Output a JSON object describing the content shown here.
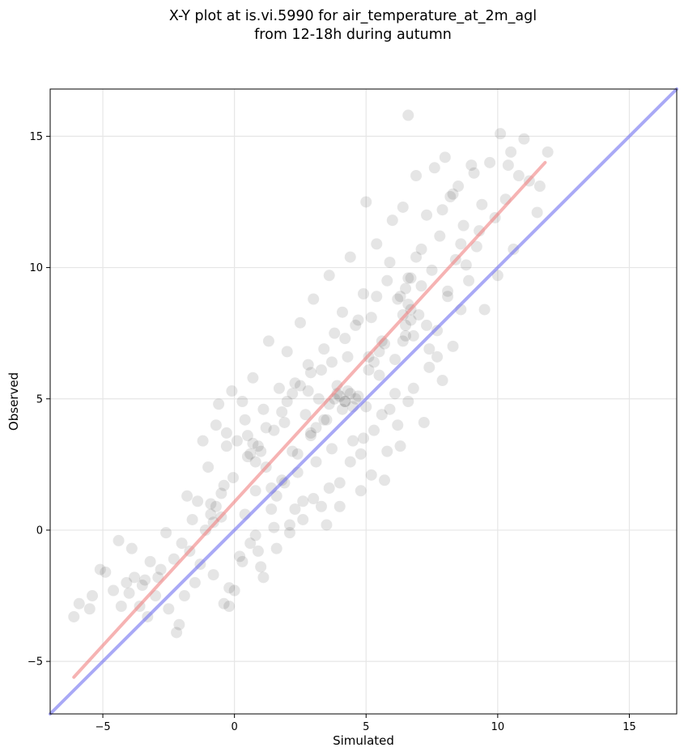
{
  "chart_data": {
    "type": "scatter",
    "title": "X-Y plot at is.vi.5990 for air_temperature_at_2m_agl",
    "subtitle": "from 12-18h during autumn",
    "xlabel": "Simulated",
    "ylabel": "Observed",
    "xlim": [
      -7,
      16.8
    ],
    "ylim": [
      -7,
      16.8
    ],
    "x_ticks": [
      -5,
      0,
      5,
      10,
      15
    ],
    "y_ticks": [
      -5,
      0,
      5,
      10,
      15
    ],
    "x_tick_labels": [
      "−5",
      "0",
      "5",
      "10",
      "15"
    ],
    "y_tick_labels": [
      "−5",
      "0",
      "5",
      "10",
      "15"
    ],
    "grid": true,
    "colors": {
      "points": "#000000",
      "fit_line": "#f08080",
      "identity_line": "#7070f0"
    },
    "series": [
      {
        "kind": "points",
        "points": [
          [
            -6.1,
            -3.3
          ],
          [
            -5.9,
            -2.8
          ],
          [
            -5.5,
            -3.0
          ],
          [
            -5.4,
            -2.5
          ],
          [
            -5.1,
            -1.5
          ],
          [
            -4.9,
            -1.6
          ],
          [
            -4.6,
            -2.3
          ],
          [
            -4.4,
            -0.4
          ],
          [
            -4.1,
            -2.0
          ],
          [
            -4.0,
            -2.4
          ],
          [
            -3.9,
            -0.7
          ],
          [
            -3.8,
            -1.8
          ],
          [
            -3.6,
            -2.9
          ],
          [
            -3.4,
            -1.9
          ],
          [
            -3.3,
            -3.3
          ],
          [
            -3.2,
            -1.2
          ],
          [
            -3.0,
            -2.5
          ],
          [
            -2.8,
            -1.5
          ],
          [
            -2.6,
            -0.1
          ],
          [
            -2.5,
            -3.0
          ],
          [
            -2.3,
            -1.1
          ],
          [
            -2.2,
            -3.9
          ],
          [
            -2.1,
            -3.6
          ],
          [
            -1.9,
            -2.5
          ],
          [
            -1.8,
            1.3
          ],
          [
            -1.7,
            -0.8
          ],
          [
            -1.6,
            0.4
          ],
          [
            -1.5,
            -2.0
          ],
          [
            -1.3,
            -1.3
          ],
          [
            -1.2,
            3.4
          ],
          [
            -1.1,
            0.0
          ],
          [
            -1.0,
            2.4
          ],
          [
            -0.9,
            1.0
          ],
          [
            -0.8,
            -1.7
          ],
          [
            -0.7,
            4.0
          ],
          [
            -0.6,
            4.8
          ],
          [
            -0.5,
            0.5
          ],
          [
            -0.4,
            1.7
          ],
          [
            -0.3,
            3.2
          ],
          [
            -0.2,
            -2.9
          ],
          [
            -0.1,
            5.3
          ],
          [
            -0.05,
            2.0
          ],
          [
            0.0,
            -2.3
          ],
          [
            0.1,
            3.4
          ],
          [
            0.2,
            -1.0
          ],
          [
            0.3,
            4.9
          ],
          [
            0.4,
            0.6
          ],
          [
            0.5,
            2.8
          ],
          [
            0.6,
            -0.5
          ],
          [
            0.7,
            5.8
          ],
          [
            0.8,
            1.5
          ],
          [
            0.9,
            3.2
          ],
          [
            1.0,
            -1.4
          ],
          [
            1.1,
            4.6
          ],
          [
            1.2,
            2.4
          ],
          [
            1.3,
            7.2
          ],
          [
            1.4,
            0.8
          ],
          [
            1.5,
            3.8
          ],
          [
            1.6,
            -0.7
          ],
          [
            1.7,
            5.4
          ],
          [
            1.8,
            1.9
          ],
          [
            1.9,
            4.1
          ],
          [
            2.0,
            6.8
          ],
          [
            2.1,
            0.2
          ],
          [
            2.2,
            3.0
          ],
          [
            2.3,
            5.6
          ],
          [
            2.4,
            2.2
          ],
          [
            2.5,
            7.9
          ],
          [
            2.6,
            1.1
          ],
          [
            2.7,
            4.4
          ],
          [
            2.8,
            6.3
          ],
          [
            2.9,
            3.6
          ],
          [
            3.0,
            8.8
          ],
          [
            3.1,
            2.6
          ],
          [
            3.2,
            5.0
          ],
          [
            3.3,
            0.9
          ],
          [
            3.4,
            6.9
          ],
          [
            3.5,
            4.2
          ],
          [
            3.6,
            9.7
          ],
          [
            3.7,
            3.1
          ],
          [
            3.8,
            7.5
          ],
          [
            3.9,
            5.5
          ],
          [
            4.0,
            1.8
          ],
          [
            4.1,
            8.3
          ],
          [
            4.2,
            4.9
          ],
          [
            4.3,
            6.6
          ],
          [
            4.4,
            10.4
          ],
          [
            4.5,
            3.4
          ],
          [
            4.6,
            7.8
          ],
          [
            4.7,
            5.1
          ],
          [
            4.8,
            2.9
          ],
          [
            4.9,
            9.0
          ],
          [
            5.0,
            12.5
          ],
          [
            5.0,
            4.7
          ],
          [
            5.1,
            6.1
          ],
          [
            5.2,
            8.1
          ],
          [
            5.3,
            3.8
          ],
          [
            5.4,
            10.9
          ],
          [
            5.5,
            5.9
          ],
          [
            5.6,
            7.2
          ],
          [
            5.7,
            1.9
          ],
          [
            5.8,
            9.5
          ],
          [
            5.9,
            4.6
          ],
          [
            6.0,
            11.8
          ],
          [
            6.1,
            6.5
          ],
          [
            6.2,
            8.8
          ],
          [
            6.3,
            3.2
          ],
          [
            6.4,
            12.3
          ],
          [
            6.5,
            7.4
          ],
          [
            6.6,
            15.8
          ],
          [
            6.7,
            9.6
          ],
          [
            6.8,
            5.4
          ],
          [
            6.9,
            13.5
          ],
          [
            7.0,
            8.2
          ],
          [
            7.1,
            10.7
          ],
          [
            7.2,
            4.1
          ],
          [
            7.3,
            12.0
          ],
          [
            7.4,
            6.9
          ],
          [
            7.5,
            9.9
          ],
          [
            7.6,
            13.8
          ],
          [
            7.7,
            7.6
          ],
          [
            7.8,
            11.2
          ],
          [
            7.9,
            5.7
          ],
          [
            8.0,
            14.2
          ],
          [
            8.1,
            9.1
          ],
          [
            8.2,
            12.7
          ],
          [
            8.3,
            7.0
          ],
          [
            8.4,
            10.3
          ],
          [
            8.5,
            13.1
          ],
          [
            8.6,
            8.4
          ],
          [
            8.7,
            11.6
          ],
          [
            8.9,
            9.5
          ],
          [
            9.0,
            13.9
          ],
          [
            9.2,
            10.8
          ],
          [
            9.4,
            12.4
          ],
          [
            9.5,
            8.4
          ],
          [
            9.7,
            14.0
          ],
          [
            9.9,
            11.9
          ],
          [
            10.0,
            9.7
          ],
          [
            10.1,
            15.1
          ],
          [
            10.3,
            12.6
          ],
          [
            10.5,
            14.4
          ],
          [
            10.6,
            10.7
          ],
          [
            10.8,
            13.5
          ],
          [
            11.0,
            14.9
          ],
          [
            11.2,
            13.3
          ],
          [
            11.5,
            12.1
          ],
          [
            11.6,
            13.1
          ],
          [
            11.9,
            14.4
          ],
          [
            3.6,
            4.8
          ],
          [
            3.8,
            5.0
          ],
          [
            4.0,
            5.1
          ],
          [
            4.2,
            4.9
          ],
          [
            4.4,
            5.2
          ],
          [
            4.6,
            5.0
          ],
          [
            4.1,
            4.6
          ],
          [
            4.3,
            5.3
          ],
          [
            3.9,
            5.2
          ],
          [
            4.5,
            4.7
          ],
          [
            6.4,
            8.2
          ],
          [
            6.5,
            7.8
          ],
          [
            6.6,
            8.6
          ],
          [
            6.7,
            8.0
          ],
          [
            6.8,
            7.4
          ],
          [
            6.5,
            9.2
          ],
          [
            6.6,
            9.6
          ],
          [
            6.4,
            7.2
          ],
          [
            6.7,
            8.4
          ],
          [
            6.3,
            8.9
          ],
          [
            0.6,
            2.9
          ],
          [
            0.8,
            2.6
          ],
          [
            1.0,
            3.0
          ],
          [
            0.7,
            3.3
          ],
          [
            -0.9,
            0.6
          ],
          [
            -0.7,
            0.9
          ],
          [
            -0.8,
            0.3
          ],
          [
            2.5,
            5.5
          ],
          [
            2.8,
            5.3
          ],
          [
            2.2,
            5.2
          ],
          [
            5.3,
            6.4
          ],
          [
            5.5,
            6.8
          ],
          [
            5.7,
            7.1
          ],
          [
            5.1,
            6.6
          ],
          [
            1.4,
            1.6
          ],
          [
            1.6,
            1.3
          ],
          [
            1.9,
            1.8
          ],
          [
            3.1,
            3.9
          ],
          [
            3.4,
            4.2
          ],
          [
            2.9,
            3.7
          ],
          [
            7.4,
            6.2
          ],
          [
            7.7,
            6.6
          ],
          [
            6.2,
            4.0
          ],
          [
            6.6,
            4.9
          ],
          [
            5.8,
            3.0
          ],
          [
            2.1,
            -0.1
          ],
          [
            2.6,
            0.4
          ],
          [
            1.1,
            -1.8
          ],
          [
            0.3,
            -1.2
          ],
          [
            -0.4,
            -2.8
          ],
          [
            -0.2,
            -2.2
          ],
          [
            0.9,
            -0.8
          ],
          [
            4.8,
            1.5
          ],
          [
            5.2,
            2.1
          ],
          [
            3.5,
            0.2
          ],
          [
            4.0,
            0.9
          ],
          [
            2.4,
            2.9
          ],
          [
            3.3,
            6.1
          ],
          [
            1.8,
            4.5
          ],
          [
            0.4,
            4.2
          ],
          [
            -0.3,
            3.7
          ],
          [
            -1.4,
            1.1
          ],
          [
            -2.0,
            -0.5
          ],
          [
            -2.9,
            -1.8
          ],
          [
            -3.5,
            -2.1
          ],
          [
            -4.3,
            -2.9
          ],
          [
            8.3,
            12.8
          ],
          [
            9.1,
            13.6
          ],
          [
            7.9,
            12.2
          ],
          [
            8.6,
            10.9
          ],
          [
            9.3,
            11.4
          ],
          [
            10.4,
            13.9
          ],
          [
            7.1,
            9.3
          ],
          [
            6.9,
            10.4
          ],
          [
            5.9,
            10.2
          ],
          [
            5.4,
            8.9
          ],
          [
            4.7,
            8.0
          ],
          [
            4.2,
            7.3
          ],
          [
            3.7,
            6.4
          ],
          [
            2.9,
            6.0
          ],
          [
            2.0,
            4.9
          ],
          [
            1.2,
            3.9
          ],
          [
            0.5,
            3.6
          ],
          [
            -0.5,
            1.4
          ],
          [
            6.1,
            5.2
          ],
          [
            5.6,
            4.4
          ],
          [
            4.9,
            3.5
          ],
          [
            4.4,
            2.6
          ],
          [
            3.6,
            1.6
          ],
          [
            3.0,
            1.2
          ],
          [
            2.3,
            0.8
          ],
          [
            1.5,
            0.1
          ],
          [
            0.8,
            -0.2
          ],
          [
            7.3,
            7.8
          ],
          [
            8.1,
            8.9
          ],
          [
            8.8,
            10.1
          ]
        ]
      },
      {
        "kind": "line",
        "name": "",
        "color": "#f08080",
        "x": [
          -6.1,
          11.8
        ],
        "y": [
          -5.6,
          14.0
        ]
      },
      {
        "kind": "line",
        "name": "",
        "color": "#7070f0",
        "x": [
          -7,
          16.8
        ],
        "y": [
          -7,
          16.8
        ]
      }
    ]
  }
}
